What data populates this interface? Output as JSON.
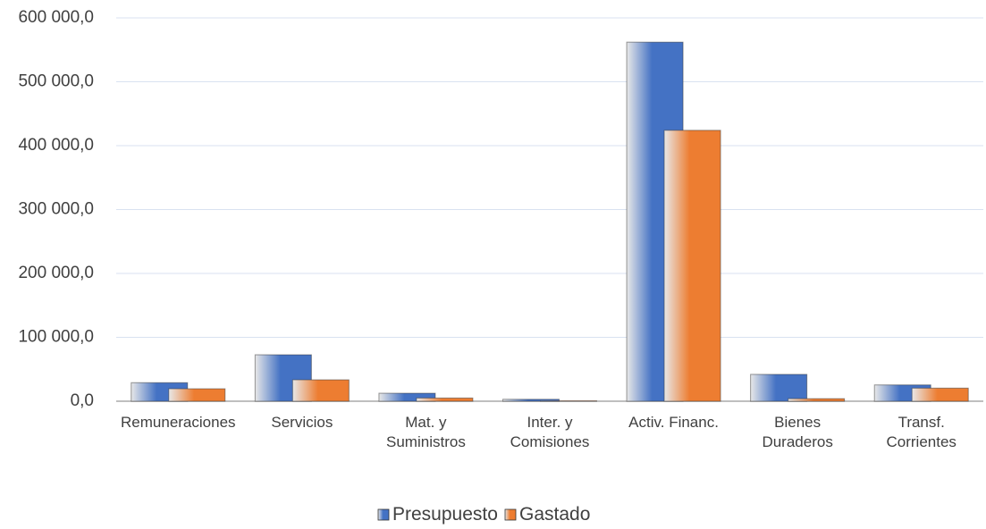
{
  "chart_data": {
    "type": "bar",
    "categories": [
      "Remuneraciones",
      "Servicios",
      "Mat. y\nSuministros",
      "Inter. y\nComisiones",
      "Activ. Financ.",
      "Bienes\nDuraderos",
      "Transf.\nCorrientes"
    ],
    "series": [
      {
        "name": "Presupuesto",
        "color": "#4472c4",
        "values": [
          29000,
          72700,
          12500,
          3000,
          562000,
          42000,
          25500
        ]
      },
      {
        "name": "Gastado",
        "color": "#ed7d31",
        "values": [
          19500,
          33500,
          5000,
          500,
          424000,
          4000,
          20500
        ]
      }
    ],
    "ylim": [
      0,
      600000
    ],
    "yticks": [
      {
        "value": 0,
        "label": "0,0"
      },
      {
        "value": 100000,
        "label": "100 000,0"
      },
      {
        "value": 200000,
        "label": "200 000,0"
      },
      {
        "value": 300000,
        "label": "300 000,0"
      },
      {
        "value": 400000,
        "label": "400 000,0"
      },
      {
        "value": 500000,
        "label": "500 000,0"
      },
      {
        "value": 600000,
        "label": "600 000,0"
      }
    ],
    "grid": true,
    "legend": "bottom"
  }
}
